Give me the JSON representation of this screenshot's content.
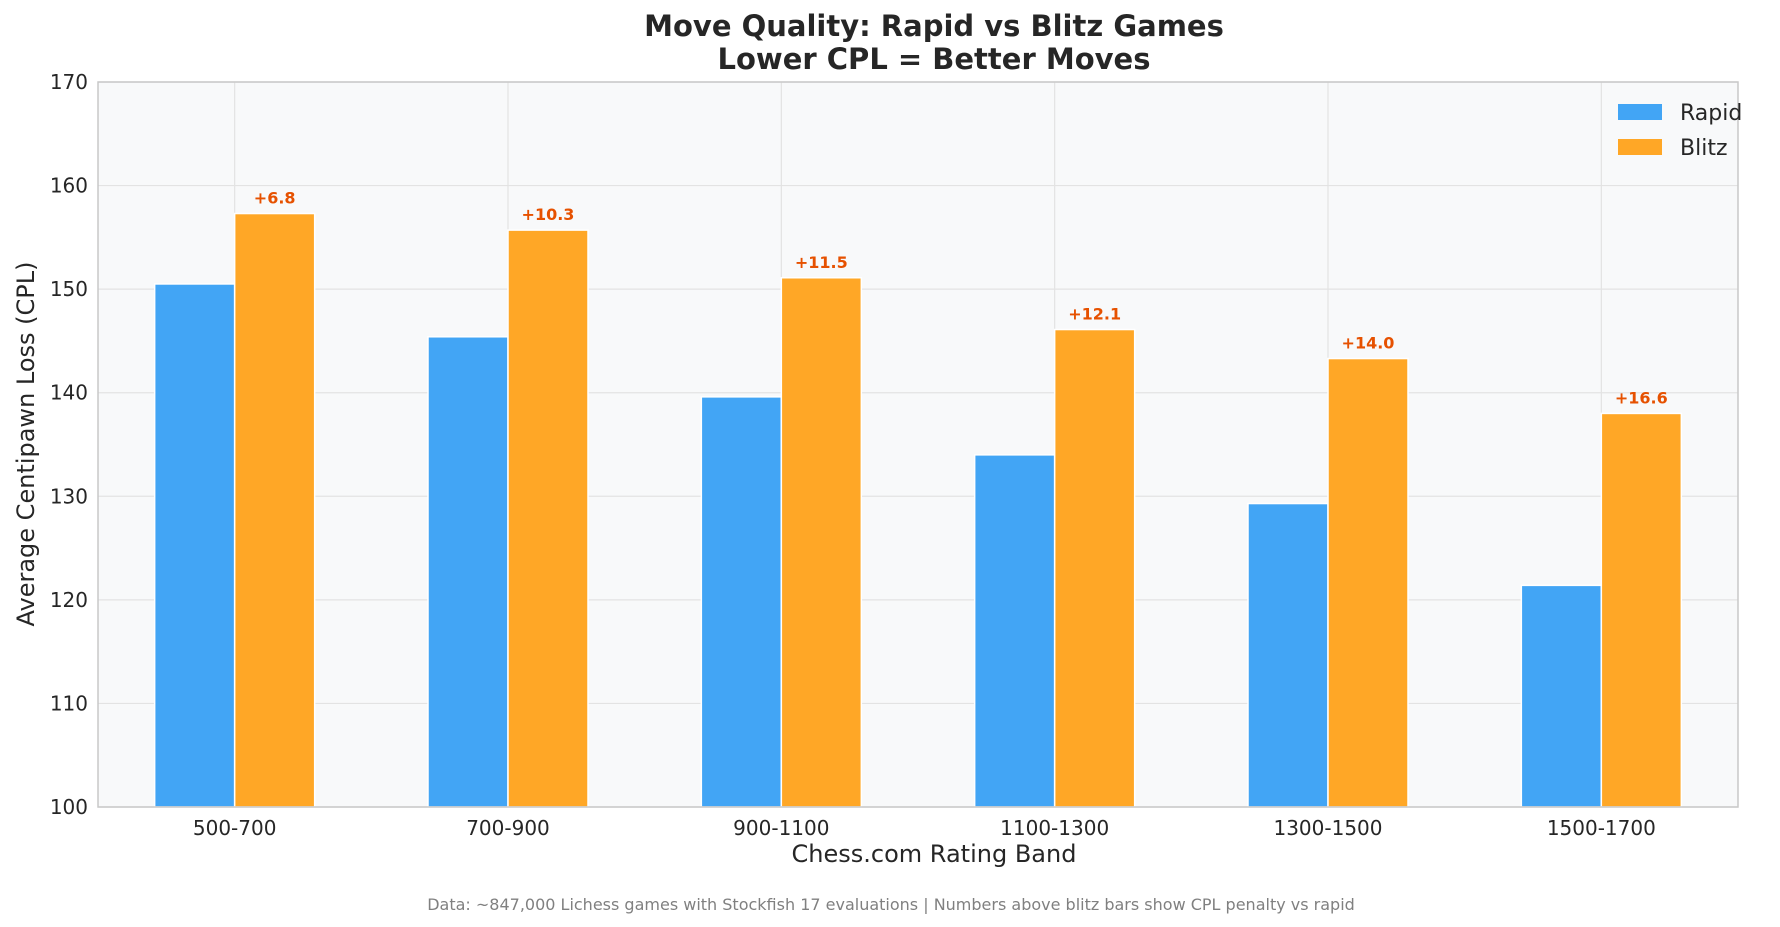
{
  "chart_data": {
    "type": "bar",
    "title": [
      "Move Quality: Rapid vs Blitz Games",
      "Lower CPL = Better Moves"
    ],
    "xlabel": "Chess.com Rating Band",
    "ylabel": "Average Centipawn Loss (CPL)",
    "ylim": [
      100,
      170
    ],
    "yticks": [
      100,
      110,
      120,
      130,
      140,
      150,
      160,
      170
    ],
    "grid": true,
    "legend_position": "top-right",
    "categories": [
      "500-700",
      "700-900",
      "900-1100",
      "1100-1300",
      "1300-1500",
      "1500-1700"
    ],
    "series": [
      {
        "name": "Rapid",
        "color": "#42a5f5",
        "values": [
          150.5,
          145.4,
          139.6,
          134.0,
          129.3,
          121.4
        ]
      },
      {
        "name": "Blitz",
        "color": "#ffa726",
        "values": [
          157.3,
          155.7,
          151.1,
          146.1,
          143.3,
          138.0
        ]
      }
    ],
    "annotations": [
      "+6.8",
      "+10.3",
      "+11.5",
      "+12.1",
      "+14.0",
      "+16.6"
    ],
    "annotation_color": "#e65100",
    "footnote": "Data: ~847,000 Lichess games with Stockfish 17 evaluations | Numbers above blitz bars show CPL penalty vs rapid"
  }
}
